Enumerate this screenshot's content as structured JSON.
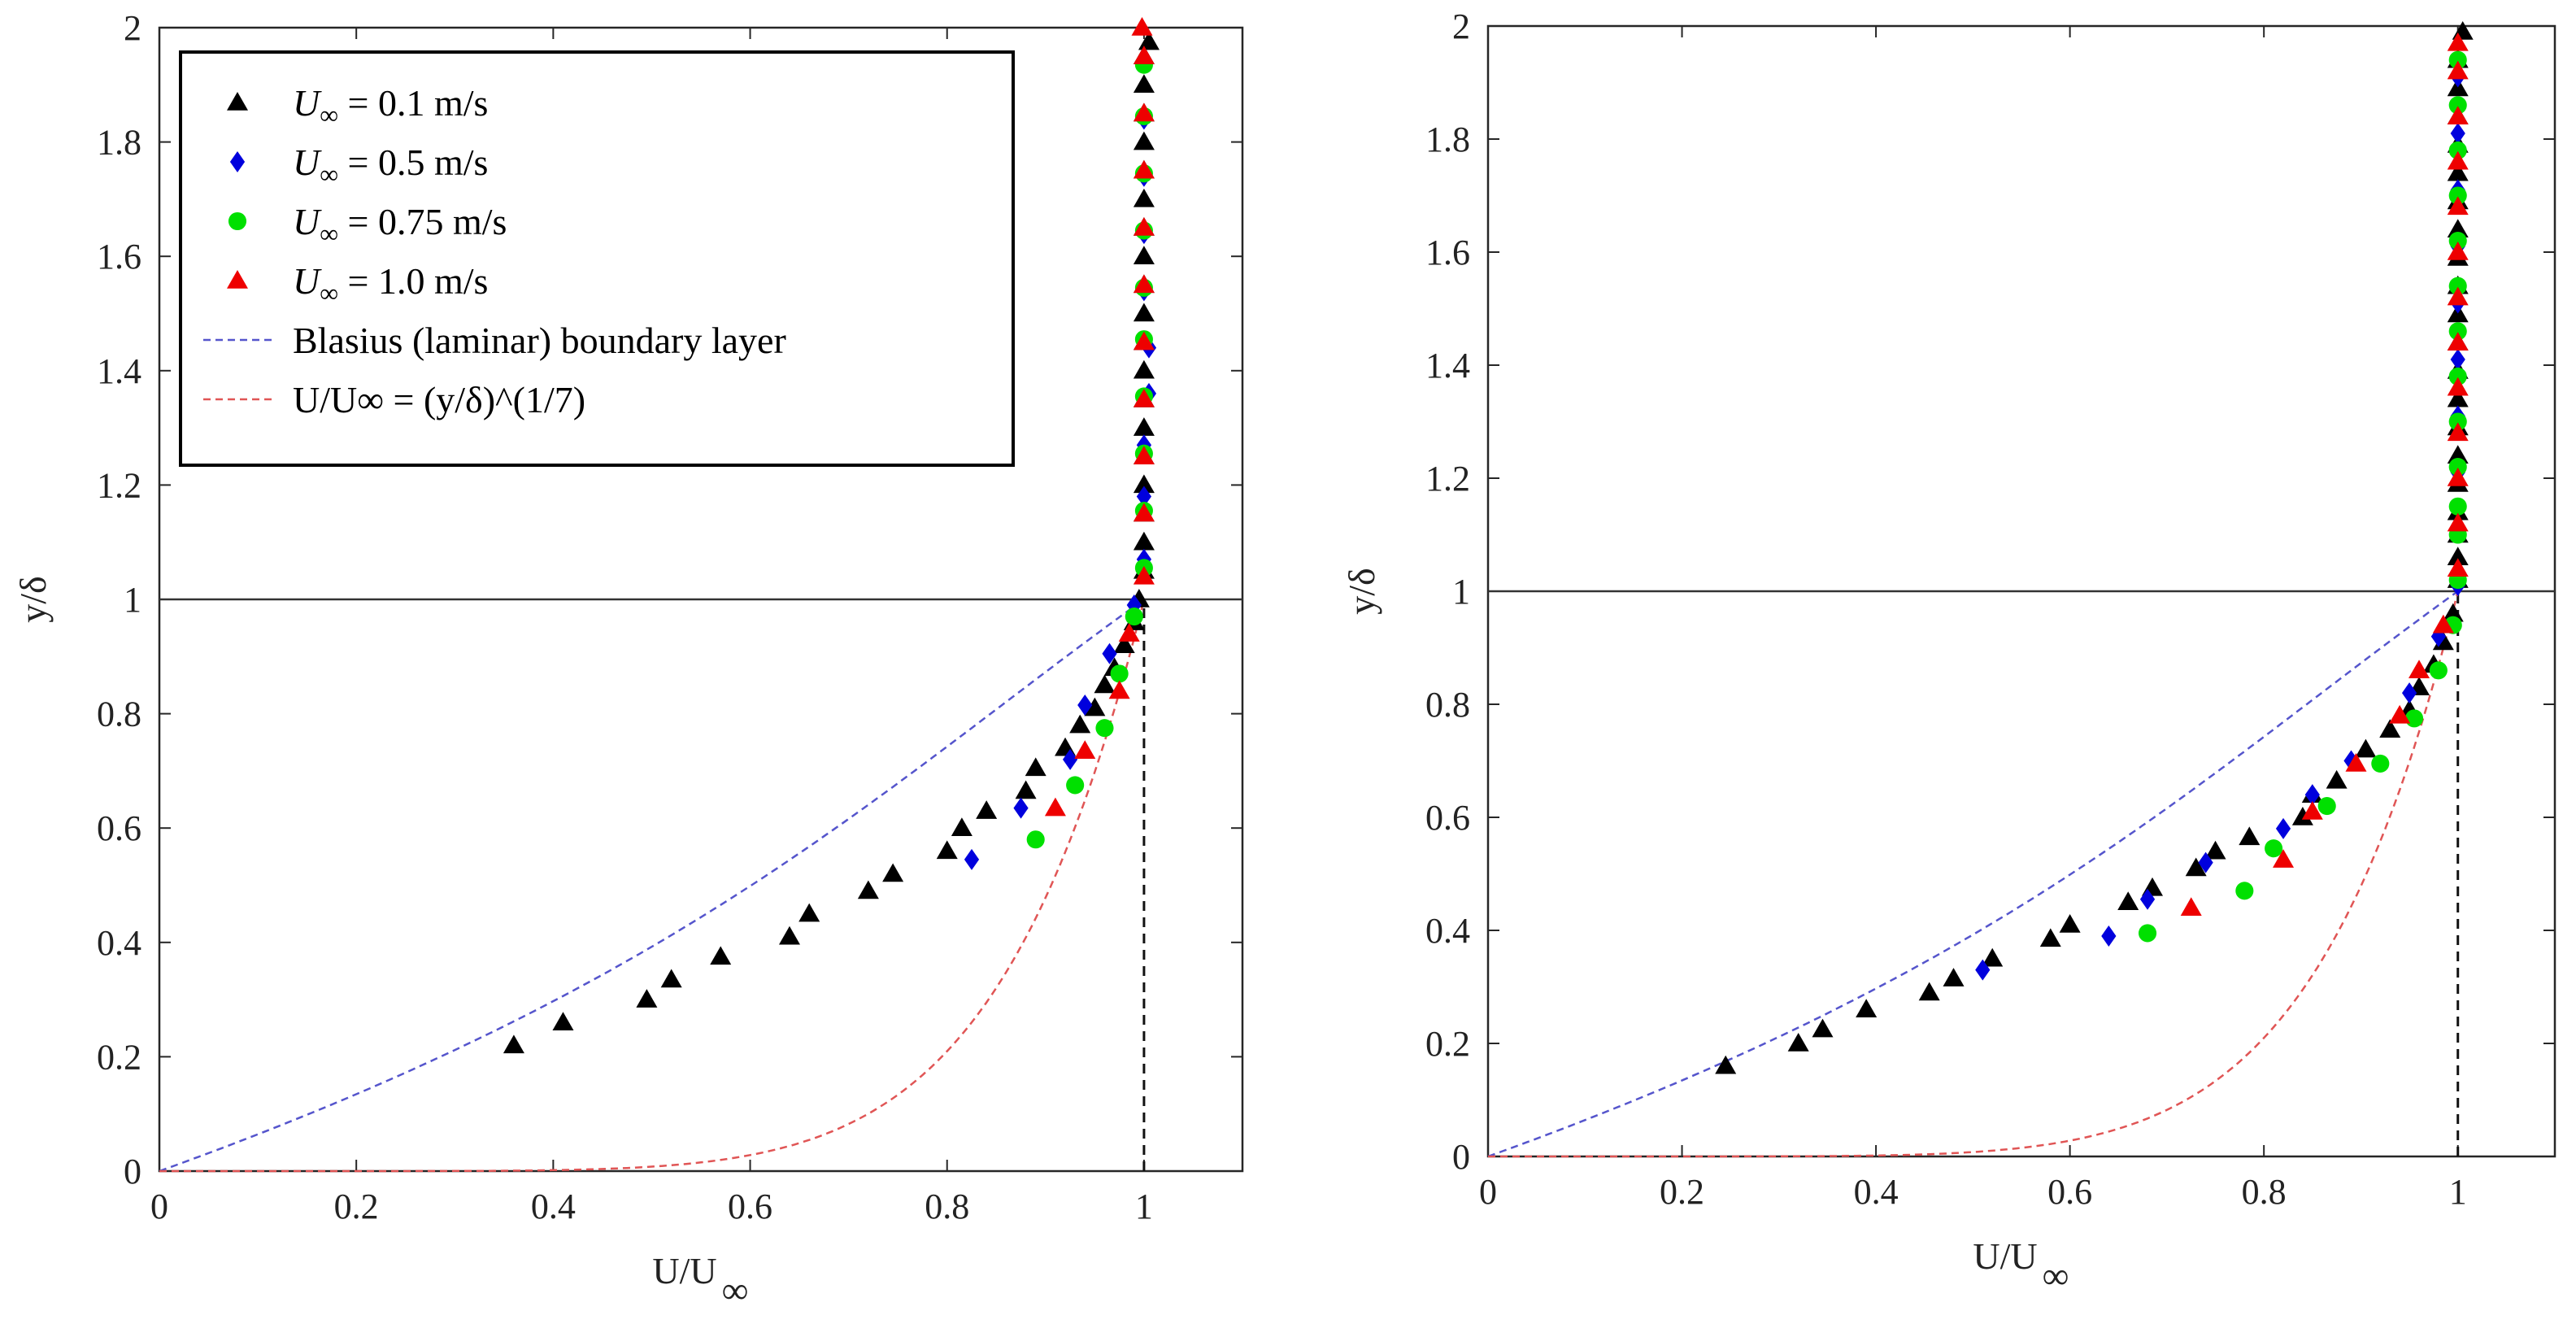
{
  "chart_data": [
    {
      "type": "scatter",
      "panel": "left",
      "xlabel": "U/U",
      "xlabel_sub": "∞",
      "ylabel": "y/δ",
      "xlim": [
        0,
        1.1
      ],
      "ylim": [
        0,
        2
      ],
      "xticks": [
        "0",
        "0.2",
        "0.4",
        "0.6",
        "0.8",
        "1"
      ],
      "xtick_values": [
        0,
        0.2,
        0.4,
        0.6,
        0.8,
        1.0
      ],
      "yticks": [
        "0",
        "0.2",
        "0.4",
        "0.6",
        "0.8",
        "1",
        "1.2",
        "1.4",
        "1.6",
        "1.8",
        "2"
      ],
      "ytick_values": [
        0,
        0.2,
        0.4,
        0.6,
        0.8,
        1.0,
        1.2,
        1.4,
        1.6,
        1.8,
        2.0
      ],
      "reference_lines": {
        "horizontal_y": 1.0,
        "vertical_dashed_x": 1.0
      },
      "legend": {
        "placement": "top-left",
        "entries": [
          {
            "sym": "U",
            "sub": "∞",
            "rest": " = 0.1 m/s",
            "marker": "triangle",
            "color": "#000000"
          },
          {
            "sym": "U",
            "sub": "∞",
            "rest": " = 0.5 m/s",
            "marker": "diamond",
            "color": "#0000dd"
          },
          {
            "sym": "U",
            "sub": "∞",
            "rest": " = 0.75 m/s",
            "marker": "circle",
            "color": "#00e000"
          },
          {
            "sym": "U",
            "sub": "∞",
            "rest": " = 1.0 m/s",
            "marker": "triangle",
            "color": "#ee0000"
          },
          {
            "text": "Blasius (laminar) boundary layer",
            "line": "dashed",
            "color": "#5555cc"
          },
          {
            "text": "U/U∞ = (y/δ)^(1/7)",
            "line": "dashed",
            "color": "#e05555"
          }
        ]
      },
      "series": [
        {
          "name": "U∞ = 0.1 m/s",
          "marker": "triangle",
          "color": "#000000",
          "points": [
            [
              0.36,
              0.22
            ],
            [
              0.41,
              0.26
            ],
            [
              0.495,
              0.3
            ],
            [
              0.52,
              0.335
            ],
            [
              0.57,
              0.375
            ],
            [
              0.64,
              0.41
            ],
            [
              0.66,
              0.45
            ],
            [
              0.72,
              0.49
            ],
            [
              0.745,
              0.52
            ],
            [
              0.8,
              0.56
            ],
            [
              0.815,
              0.6
            ],
            [
              0.84,
              0.63
            ],
            [
              0.88,
              0.665
            ],
            [
              0.89,
              0.705
            ],
            [
              0.92,
              0.74
            ],
            [
              0.935,
              0.78
            ],
            [
              0.95,
              0.81
            ],
            [
              0.96,
              0.85
            ],
            [
              0.97,
              0.88
            ],
            [
              0.98,
              0.92
            ],
            [
              0.99,
              0.96
            ],
            [
              0.995,
              1.0
            ],
            [
              1.0,
              1.05
            ],
            [
              1.0,
              1.1
            ],
            [
              1.0,
              1.15
            ],
            [
              1.0,
              1.2
            ],
            [
              1.0,
              1.25
            ],
            [
              1.0,
              1.3
            ],
            [
              1.0,
              1.35
            ],
            [
              1.0,
              1.4
            ],
            [
              1.0,
              1.45
            ],
            [
              1.0,
              1.5
            ],
            [
              1.0,
              1.55
            ],
            [
              1.0,
              1.6
            ],
            [
              1.0,
              1.65
            ],
            [
              1.0,
              1.7
            ],
            [
              1.0,
              1.75
            ],
            [
              1.0,
              1.8
            ],
            [
              1.0,
              1.85
            ],
            [
              1.0,
              1.9
            ],
            [
              1.0,
              1.95
            ],
            [
              1.005,
              1.975
            ]
          ]
        },
        {
          "name": "U∞ = 0.5 m/s",
          "marker": "diamond",
          "color": "#0000dd",
          "points": [
            [
              0.825,
              0.545
            ],
            [
              0.875,
              0.635
            ],
            [
              0.925,
              0.72
            ],
            [
              0.94,
              0.815
            ],
            [
              0.965,
              0.905
            ],
            [
              0.99,
              0.99
            ],
            [
              1.0,
              1.07
            ],
            [
              1.0,
              1.18
            ],
            [
              1.0,
              1.27
            ],
            [
              1.005,
              1.36
            ],
            [
              1.005,
              1.44
            ],
            [
              1.0,
              1.54
            ],
            [
              1.0,
              1.64
            ],
            [
              1.0,
              1.74
            ],
            [
              1.0,
              1.84
            ],
            [
              1.0,
              1.94
            ]
          ]
        },
        {
          "name": "U∞ = 0.75 m/s",
          "marker": "circle",
          "color": "#00e000",
          "points": [
            [
              0.89,
              0.58
            ],
            [
              0.93,
              0.675
            ],
            [
              0.96,
              0.775
            ],
            [
              0.975,
              0.87
            ],
            [
              0.99,
              0.97
            ],
            [
              1.0,
              1.055
            ],
            [
              1.0,
              1.155
            ],
            [
              1.0,
              1.255
            ],
            [
              1.0,
              1.355
            ],
            [
              1.0,
              1.455
            ],
            [
              1.0,
              1.545
            ],
            [
              1.0,
              1.645
            ],
            [
              1.0,
              1.745
            ],
            [
              1.0,
              1.845
            ],
            [
              1.0,
              1.935
            ]
          ]
        },
        {
          "name": "U∞ = 1.0 m/s",
          "marker": "triangle",
          "color": "#ee0000",
          "points": [
            [
              0.91,
              0.635
            ],
            [
              0.94,
              0.735
            ],
            [
              0.975,
              0.84
            ],
            [
              0.985,
              0.94
            ],
            [
              1.0,
              1.04
            ],
            [
              1.0,
              1.15
            ],
            [
              1.0,
              1.25
            ],
            [
              1.0,
              1.35
            ],
            [
              1.0,
              1.45
            ],
            [
              1.0,
              1.55
            ],
            [
              1.0,
              1.65
            ],
            [
              1.0,
              1.75
            ],
            [
              1.0,
              1.85
            ],
            [
              1.0,
              1.95
            ],
            [
              0.998,
              2.0
            ]
          ]
        }
      ]
    },
    {
      "type": "scatter",
      "panel": "right",
      "xlabel": "U/U",
      "xlabel_sub": "∞",
      "ylabel": "y/δ",
      "xlim": [
        0,
        1.1
      ],
      "ylim": [
        0,
        2
      ],
      "xticks": [
        "0",
        "0.2",
        "0.4",
        "0.6",
        "0.8",
        "1"
      ],
      "xtick_values": [
        0,
        0.2,
        0.4,
        0.6,
        0.8,
        1.0
      ],
      "yticks": [
        "0",
        "0.2",
        "0.4",
        "0.6",
        "0.8",
        "1",
        "1.2",
        "1.4",
        "1.6",
        "1.8",
        "2"
      ],
      "ytick_values": [
        0,
        0.2,
        0.4,
        0.6,
        0.8,
        1.0,
        1.2,
        1.4,
        1.6,
        1.8,
        2.0
      ],
      "reference_lines": {
        "horizontal_y": 1.0,
        "vertical_dashed_x": 1.0
      },
      "series": [
        {
          "name": "U∞ = 0.1 m/s",
          "marker": "triangle",
          "color": "#000000",
          "points": [
            [
              0.245,
              0.16
            ],
            [
              0.32,
              0.2
            ],
            [
              0.345,
              0.225
            ],
            [
              0.39,
              0.26
            ],
            [
              0.455,
              0.29
            ],
            [
              0.48,
              0.315
            ],
            [
              0.52,
              0.35
            ],
            [
              0.58,
              0.385
            ],
            [
              0.6,
              0.41
            ],
            [
              0.66,
              0.45
            ],
            [
              0.685,
              0.475
            ],
            [
              0.73,
              0.51
            ],
            [
              0.75,
              0.54
            ],
            [
              0.785,
              0.565
            ],
            [
              0.84,
              0.6
            ],
            [
              0.85,
              0.64
            ],
            [
              0.875,
              0.665
            ],
            [
              0.905,
              0.72
            ],
            [
              0.93,
              0.755
            ],
            [
              0.95,
              0.79
            ],
            [
              0.96,
              0.83
            ],
            [
              0.975,
              0.87
            ],
            [
              0.985,
              0.91
            ],
            [
              0.995,
              0.96
            ],
            [
              1.0,
              1.02
            ],
            [
              1.0,
              1.06
            ],
            [
              1.0,
              1.1
            ],
            [
              1.0,
              1.14
            ],
            [
              1.0,
              1.19
            ],
            [
              1.0,
              1.24
            ],
            [
              1.0,
              1.29
            ],
            [
              1.0,
              1.34
            ],
            [
              1.0,
              1.39
            ],
            [
              1.0,
              1.44
            ],
            [
              1.0,
              1.49
            ],
            [
              1.0,
              1.54
            ],
            [
              1.0,
              1.59
            ],
            [
              1.0,
              1.64
            ],
            [
              1.0,
              1.69
            ],
            [
              1.0,
              1.74
            ],
            [
              1.0,
              1.79
            ],
            [
              1.0,
              1.84
            ],
            [
              1.0,
              1.89
            ],
            [
              1.0,
              1.94
            ],
            [
              1.005,
              1.99
            ]
          ]
        },
        {
          "name": "U∞ = 0.5 m/s",
          "marker": "diamond",
          "color": "#0000dd",
          "points": [
            [
              0.51,
              0.33
            ],
            [
              0.64,
              0.39
            ],
            [
              0.68,
              0.455
            ],
            [
              0.74,
              0.52
            ],
            [
              0.82,
              0.58
            ],
            [
              0.85,
              0.64
            ],
            [
              0.89,
              0.7
            ],
            [
              0.95,
              0.82
            ],
            [
              0.98,
              0.92
            ],
            [
              1.0,
              1.01
            ],
            [
              1.0,
              1.11
            ],
            [
              1.0,
              1.21
            ],
            [
              1.0,
              1.31
            ],
            [
              1.0,
              1.41
            ],
            [
              1.0,
              1.51
            ],
            [
              1.0,
              1.61
            ],
            [
              1.0,
              1.71
            ],
            [
              1.0,
              1.81
            ],
            [
              1.0,
              1.91
            ]
          ]
        },
        {
          "name": "U∞ = 0.75 m/s",
          "marker": "circle",
          "color": "#00e000",
          "points": [
            [
              0.68,
              0.395
            ],
            [
              0.78,
              0.47
            ],
            [
              0.81,
              0.545
            ],
            [
              0.865,
              0.62
            ],
            [
              0.92,
              0.695
            ],
            [
              0.955,
              0.775
            ],
            [
              0.98,
              0.86
            ],
            [
              0.995,
              0.94
            ],
            [
              1.0,
              1.02
            ],
            [
              1.0,
              1.1
            ],
            [
              1.0,
              1.15
            ],
            [
              1.0,
              1.22
            ],
            [
              1.0,
              1.3
            ],
            [
              1.0,
              1.38
            ],
            [
              1.0,
              1.46
            ],
            [
              1.0,
              1.54
            ],
            [
              1.0,
              1.62
            ],
            [
              1.0,
              1.7
            ],
            [
              1.0,
              1.78
            ],
            [
              1.0,
              1.86
            ],
            [
              1.0,
              1.94
            ]
          ]
        },
        {
          "name": "U∞ = 1.0 m/s",
          "marker": "triangle",
          "color": "#ee0000",
          "points": [
            [
              0.725,
              0.44
            ],
            [
              0.82,
              0.525
            ],
            [
              0.85,
              0.61
            ],
            [
              0.895,
              0.695
            ],
            [
              0.94,
              0.78
            ],
            [
              0.96,
              0.86
            ],
            [
              0.985,
              0.94
            ],
            [
              1.0,
              1.04
            ],
            [
              1.0,
              1.12
            ],
            [
              1.0,
              1.2
            ],
            [
              1.0,
              1.28
            ],
            [
              1.0,
              1.36
            ],
            [
              1.0,
              1.44
            ],
            [
              1.0,
              1.52
            ],
            [
              1.0,
              1.6
            ],
            [
              1.0,
              1.68
            ],
            [
              1.0,
              1.76
            ],
            [
              1.0,
              1.84
            ],
            [
              1.0,
              1.92
            ],
            [
              1.0,
              1.97
            ]
          ]
        }
      ]
    }
  ]
}
